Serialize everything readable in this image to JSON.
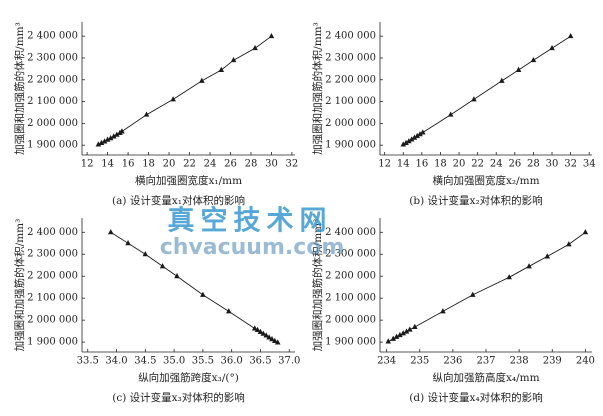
{
  "chart_data": [
    {
      "type": "line",
      "marker": "triangle",
      "color": "#1a1a1a",
      "y_label": "加强圈和加强筋的体积/mm³",
      "x_label": "横向加强圈宽度x₁/mm",
      "caption": "(a) 设计变量x₁对体积的影响",
      "x": [
        13.1,
        13.4,
        13.7,
        14.0,
        14.3,
        14.6,
        14.9,
        15.2,
        15.4,
        17.8,
        20.4,
        23.2,
        25.1,
        26.3,
        28.4,
        30.0
      ],
      "values": [
        1903000,
        1910000,
        1917000,
        1925000,
        1932000,
        1940000,
        1948000,
        1956000,
        1963000,
        2040000,
        2110000,
        2195000,
        2245000,
        2290000,
        2345000,
        2400000
      ],
      "xlim": [
        11.5,
        32.3
      ],
      "xticks": [
        12,
        14,
        16,
        18,
        20,
        22,
        24,
        26,
        28,
        30,
        32
      ],
      "ylim": [
        1855000,
        2465000
      ],
      "yticks": [
        {
          "value": 1900000,
          "label": "1 900 000"
        },
        {
          "value": 2000000,
          "label": "2 000 000"
        },
        {
          "value": 2100000,
          "label": "2 100 000"
        },
        {
          "value": 2200000,
          "label": "2 200 000"
        },
        {
          "value": 2300000,
          "label": "2 300 000"
        },
        {
          "value": 2400000,
          "label": "2 400 000"
        }
      ]
    },
    {
      "type": "line",
      "marker": "triangle",
      "color": "#1a1a1a",
      "y_label": "加强圈和加强筋的体积/mm³",
      "x_label": "横向加强圈宽度x₂/mm",
      "caption": "(b) 设计变量x₂对体积的影响",
      "x": [
        14.0,
        14.3,
        14.6,
        14.9,
        15.2,
        15.5,
        15.8,
        16.1,
        19.1,
        21.6,
        24.6,
        26.4,
        28.0,
        30.0,
        32.0
      ],
      "values": [
        1903000,
        1910000,
        1918000,
        1926000,
        1934000,
        1942000,
        1950000,
        1958000,
        2040000,
        2110000,
        2195000,
        2245000,
        2290000,
        2345000,
        2400000
      ],
      "xlim": [
        11.5,
        34.3
      ],
      "xticks": [
        12,
        14,
        16,
        18,
        20,
        22,
        24,
        26,
        28,
        30,
        32,
        34
      ],
      "ylim": [
        1855000,
        2465000
      ],
      "yticks": [
        {
          "value": 1900000,
          "label": "1 900 000"
        },
        {
          "value": 2000000,
          "label": "2 000 000"
        },
        {
          "value": 2100000,
          "label": "2 100 000"
        },
        {
          "value": 2200000,
          "label": "2 200 000"
        },
        {
          "value": 2300000,
          "label": "2 300 000"
        },
        {
          "value": 2400000,
          "label": "2 400 000"
        }
      ]
    },
    {
      "type": "line",
      "marker": "triangle",
      "color": "#1a1a1a",
      "y_label": "加强圈和加强筋的体积/mm³",
      "x_label": "纵向加强筋跨度x₃/(°)",
      "caption": "(c) 设计变量x₃对体积的影响",
      "x": [
        33.9,
        34.2,
        34.5,
        34.8,
        35.05,
        35.5,
        35.95,
        36.4,
        36.45,
        36.5,
        36.55,
        36.6,
        36.65,
        36.7,
        36.75,
        36.8
      ],
      "values": [
        2400000,
        2350000,
        2300000,
        2245000,
        2200000,
        2115000,
        2040000,
        1962000,
        1955000,
        1946000,
        1938000,
        1930000,
        1921000,
        1913000,
        1905000,
        1898000
      ],
      "xlim": [
        33.4,
        37.1
      ],
      "xticks": [
        33.5,
        {
          "value": 34,
          "label": "34.0"
        },
        34.5,
        {
          "value": 35,
          "label": "35.0"
        },
        35.5,
        {
          "value": 36,
          "label": "36.0"
        },
        36.5,
        {
          "value": 37,
          "label": "37.0"
        }
      ],
      "ylim": [
        1855000,
        2465000
      ],
      "yticks": [
        {
          "value": 1900000,
          "label": "1 900 000"
        },
        {
          "value": 2000000,
          "label": "2 000 000"
        },
        {
          "value": 2100000,
          "label": "2 100 000"
        },
        {
          "value": 2200000,
          "label": "2 200 000"
        },
        {
          "value": 2300000,
          "label": "2 300 000"
        },
        {
          "value": 2400000,
          "label": "2 400 000"
        }
      ]
    },
    {
      "type": "line",
      "marker": "triangle",
      "color": "#1a1a1a",
      "y_label": "加强圈和加强筋的体积/mm³",
      "x_label": "纵向加强筋高度x₄/mm",
      "caption": "(d) 设计变量x₄对体积的影响",
      "x": [
        234.05,
        234.2,
        234.3,
        234.4,
        234.5,
        234.6,
        234.7,
        234.85,
        235.7,
        236.6,
        237.7,
        238.3,
        238.85,
        239.5,
        240.0
      ],
      "values": [
        1903000,
        1915000,
        1924000,
        1932000,
        1940000,
        1948000,
        1957000,
        1969000,
        2040000,
        2115000,
        2195000,
        2245000,
        2290000,
        2345000,
        2400000
      ],
      "xlim": [
        233.8,
        240.2
      ],
      "xticks": [
        234,
        235,
        236,
        237,
        238,
        239,
        240
      ],
      "ylim": [
        1855000,
        2465000
      ],
      "yticks": [
        {
          "value": 1900000,
          "label": "1 900 000"
        },
        {
          "value": 2000000,
          "label": "2 000 000"
        },
        {
          "value": 2100000,
          "label": "2 100 000"
        },
        {
          "value": 2200000,
          "label": "2 200 000"
        },
        {
          "value": 2300000,
          "label": "2 300 000"
        },
        {
          "value": 2400000,
          "label": "2 400 000"
        }
      ]
    }
  ],
  "watermark": {
    "title": "真空技术网",
    "url": "chvacuum.com"
  }
}
